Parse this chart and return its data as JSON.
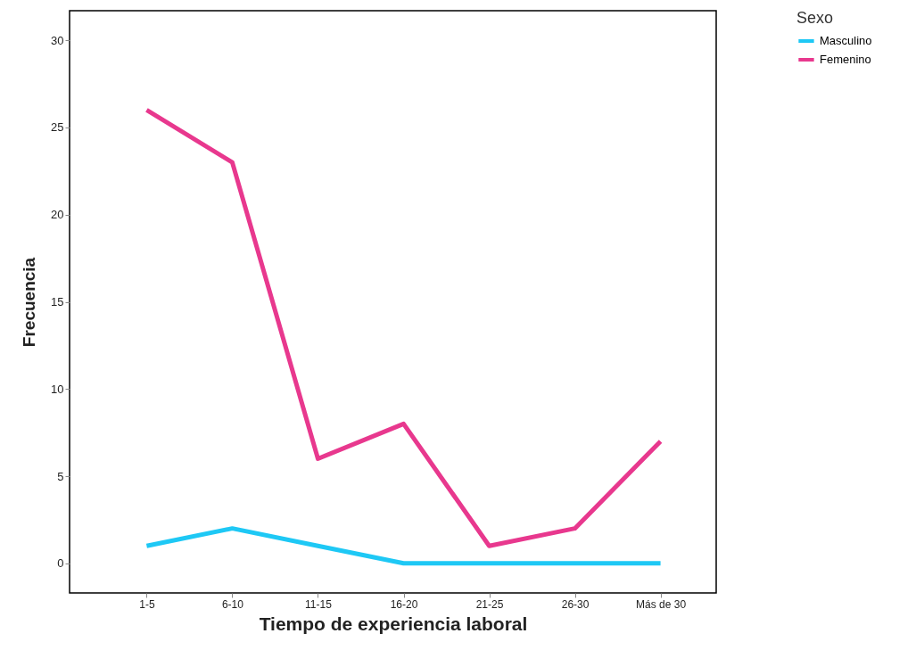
{
  "chart_data": {
    "type": "line",
    "xlabel": "Tiempo de experiencia laboral",
    "ylabel": "Frecuencia",
    "legend_title": "Sexo",
    "legend": "top right",
    "grid": false,
    "categories": [
      "1-5",
      "6-10",
      "11-15",
      "16-20",
      "21-25",
      "26-30",
      "Más de 30"
    ],
    "ylim": [
      -1.7,
      31.7
    ],
    "yticks": [
      0,
      5,
      10,
      15,
      20,
      25,
      30
    ],
    "series": [
      {
        "name": "Masculino",
        "color": "#1ec8f5",
        "values": [
          1,
          2,
          1,
          0,
          0,
          0,
          0
        ]
      },
      {
        "name": "Femenino",
        "color": "#e8388e",
        "values": [
          26,
          23,
          6,
          8,
          1,
          2,
          7
        ]
      }
    ]
  }
}
